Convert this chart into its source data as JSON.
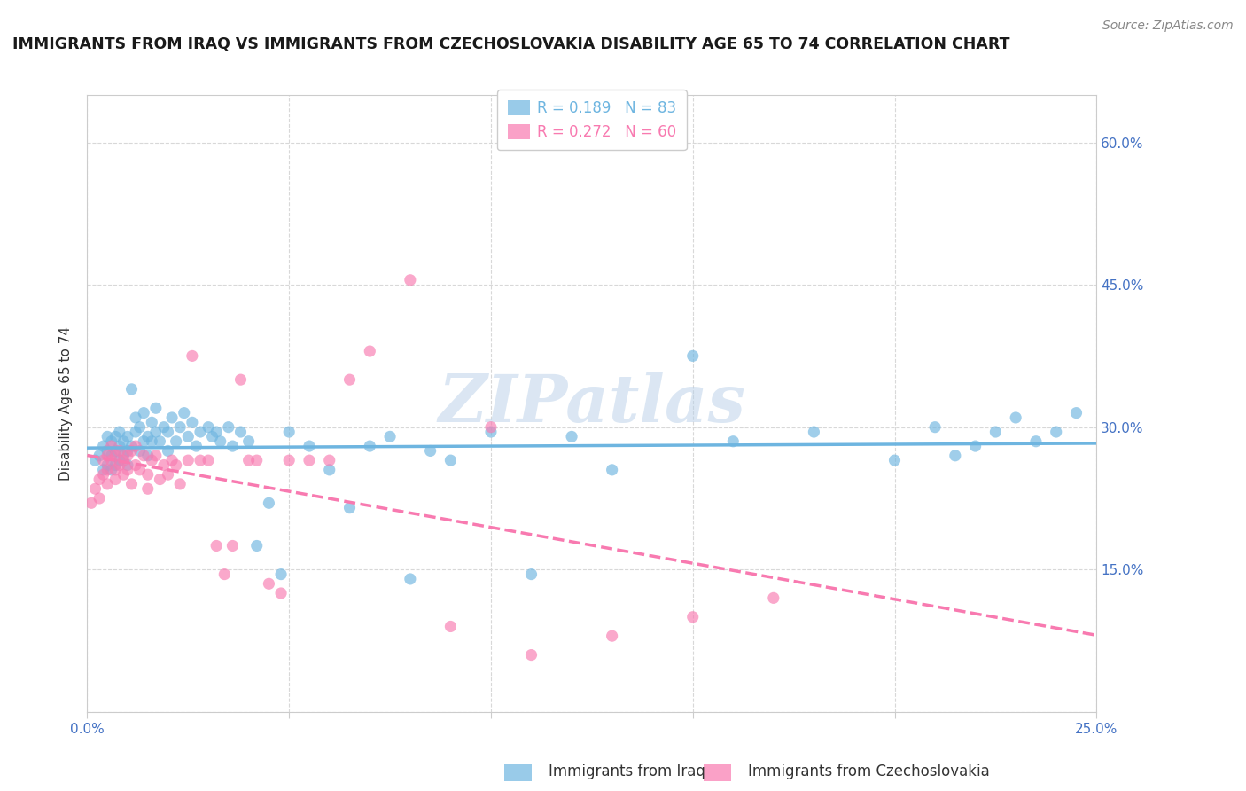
{
  "title": "IMMIGRANTS FROM IRAQ VS IMMIGRANTS FROM CZECHOSLOVAKIA DISABILITY AGE 65 TO 74 CORRELATION CHART",
  "source": "Source: ZipAtlas.com",
  "ylabel": "Disability Age 65 to 74",
  "xlim": [
    0.0,
    0.25
  ],
  "ylim": [
    0.0,
    0.65
  ],
  "xticks": [
    0.0,
    0.05,
    0.1,
    0.15,
    0.2,
    0.25
  ],
  "yticks": [
    0.0,
    0.15,
    0.3,
    0.45,
    0.6
  ],
  "xticklabels_left": [
    "0.0%",
    "",
    "",
    "",
    "",
    "25.0%"
  ],
  "yticklabels_right": [
    "",
    "15.0%",
    "30.0%",
    "45.0%",
    "60.0%"
  ],
  "iraq_color": "#6eb5e0",
  "czech_color": "#f87ab0",
  "iraq_R": 0.189,
  "iraq_N": 83,
  "czech_R": 0.272,
  "czech_N": 60,
  "watermark": "ZIPatlas",
  "iraq_x": [
    0.002,
    0.003,
    0.004,
    0.004,
    0.005,
    0.005,
    0.005,
    0.006,
    0.006,
    0.006,
    0.007,
    0.007,
    0.007,
    0.008,
    0.008,
    0.008,
    0.009,
    0.009,
    0.01,
    0.01,
    0.01,
    0.011,
    0.011,
    0.012,
    0.012,
    0.013,
    0.013,
    0.014,
    0.014,
    0.015,
    0.015,
    0.016,
    0.016,
    0.017,
    0.017,
    0.018,
    0.019,
    0.02,
    0.02,
    0.021,
    0.022,
    0.023,
    0.024,
    0.025,
    0.026,
    0.027,
    0.028,
    0.03,
    0.031,
    0.032,
    0.033,
    0.035,
    0.036,
    0.038,
    0.04,
    0.042,
    0.045,
    0.048,
    0.05,
    0.055,
    0.06,
    0.065,
    0.07,
    0.075,
    0.08,
    0.085,
    0.09,
    0.1,
    0.11,
    0.12,
    0.13,
    0.15,
    0.16,
    0.18,
    0.2,
    0.21,
    0.215,
    0.22,
    0.225,
    0.23,
    0.235,
    0.24,
    0.245
  ],
  "iraq_y": [
    0.265,
    0.27,
    0.255,
    0.28,
    0.26,
    0.275,
    0.29,
    0.255,
    0.27,
    0.285,
    0.26,
    0.275,
    0.29,
    0.265,
    0.28,
    0.295,
    0.27,
    0.285,
    0.26,
    0.275,
    0.29,
    0.34,
    0.28,
    0.295,
    0.31,
    0.275,
    0.3,
    0.285,
    0.315,
    0.29,
    0.27,
    0.305,
    0.285,
    0.295,
    0.32,
    0.285,
    0.3,
    0.275,
    0.295,
    0.31,
    0.285,
    0.3,
    0.315,
    0.29,
    0.305,
    0.28,
    0.295,
    0.3,
    0.29,
    0.295,
    0.285,
    0.3,
    0.28,
    0.295,
    0.285,
    0.175,
    0.22,
    0.145,
    0.295,
    0.28,
    0.255,
    0.215,
    0.28,
    0.29,
    0.14,
    0.275,
    0.265,
    0.295,
    0.145,
    0.29,
    0.255,
    0.375,
    0.285,
    0.295,
    0.265,
    0.3,
    0.27,
    0.28,
    0.295,
    0.31,
    0.285,
    0.295,
    0.315
  ],
  "czech_x": [
    0.001,
    0.002,
    0.003,
    0.003,
    0.004,
    0.004,
    0.005,
    0.005,
    0.005,
    0.006,
    0.006,
    0.007,
    0.007,
    0.007,
    0.008,
    0.008,
    0.009,
    0.009,
    0.01,
    0.01,
    0.011,
    0.011,
    0.012,
    0.012,
    0.013,
    0.014,
    0.015,
    0.015,
    0.016,
    0.017,
    0.018,
    0.019,
    0.02,
    0.021,
    0.022,
    0.023,
    0.025,
    0.026,
    0.028,
    0.03,
    0.032,
    0.034,
    0.036,
    0.038,
    0.04,
    0.042,
    0.045,
    0.048,
    0.05,
    0.055,
    0.06,
    0.065,
    0.07,
    0.08,
    0.09,
    0.1,
    0.11,
    0.13,
    0.15,
    0.17
  ],
  "czech_y": [
    0.22,
    0.235,
    0.225,
    0.245,
    0.25,
    0.265,
    0.255,
    0.27,
    0.24,
    0.265,
    0.28,
    0.255,
    0.27,
    0.245,
    0.275,
    0.26,
    0.265,
    0.25,
    0.27,
    0.255,
    0.24,
    0.275,
    0.26,
    0.28,
    0.255,
    0.27,
    0.235,
    0.25,
    0.265,
    0.27,
    0.245,
    0.26,
    0.25,
    0.265,
    0.26,
    0.24,
    0.265,
    0.375,
    0.265,
    0.265,
    0.175,
    0.145,
    0.175,
    0.35,
    0.265,
    0.265,
    0.135,
    0.125,
    0.265,
    0.265,
    0.265,
    0.35,
    0.38,
    0.455,
    0.09,
    0.3,
    0.06,
    0.08,
    0.1,
    0.12
  ],
  "background_color": "#ffffff",
  "grid_color": "#d8d8d8",
  "axis_color": "#cccccc",
  "tick_color": "#4472c4",
  "title_fontsize": 12.5,
  "label_fontsize": 11,
  "tick_fontsize": 11,
  "legend_fontsize": 12,
  "source_fontsize": 10
}
